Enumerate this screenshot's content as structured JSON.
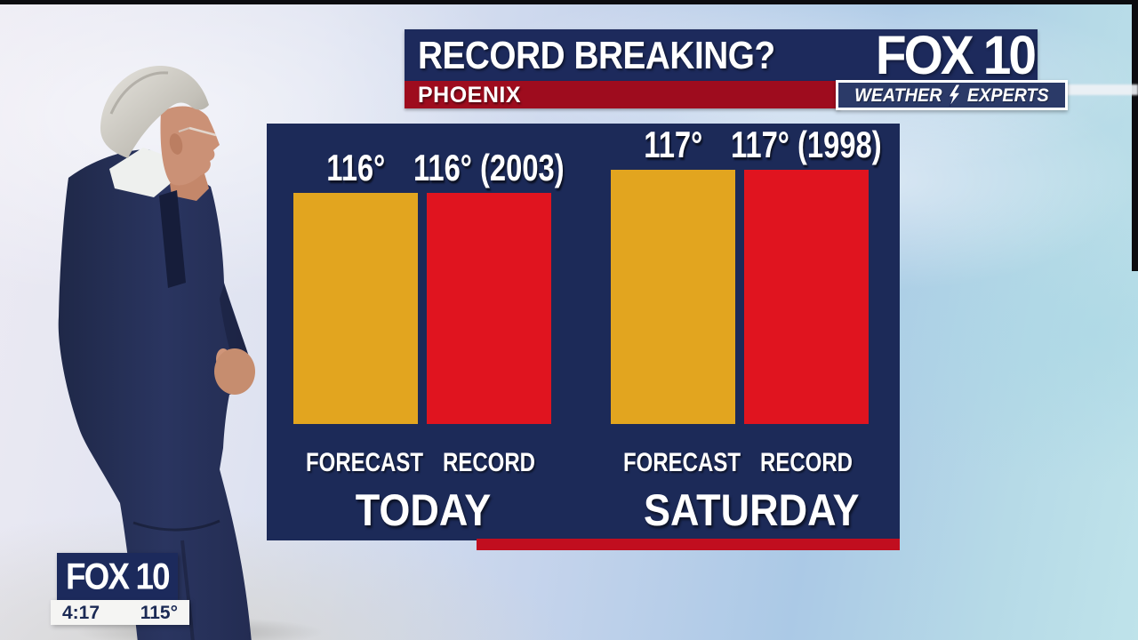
{
  "header": {
    "title": "RECORD BREAKING?",
    "location": "PHOENIX",
    "logo_text": "FOX 10",
    "weather_experts": {
      "left": "WEATHER",
      "right": "EXPERTS"
    }
  },
  "chart_data": {
    "type": "bar",
    "title": "RECORD BREAKING?",
    "location": "PHOENIX",
    "unit": "°",
    "value_range_shown": [
      106,
      117
    ],
    "grid": false,
    "legend": "none",
    "groups": [
      {
        "day": "TODAY",
        "bars": [
          {
            "category": "FORECAST",
            "value": 116,
            "label": "116°",
            "role": "forecast"
          },
          {
            "category": "RECORD",
            "value": 116,
            "label": "116° (2003)",
            "record_year": 2003,
            "role": "record"
          }
        ]
      },
      {
        "day": "SATURDAY",
        "bars": [
          {
            "category": "FORECAST",
            "value": 117,
            "label": "117°",
            "role": "forecast"
          },
          {
            "category": "RECORD",
            "value": 117,
            "label": "117° (1998)",
            "record_year": 1998,
            "role": "record"
          }
        ]
      }
    ],
    "colors": {
      "forecast": "#e2a51f",
      "record": "#e0141f",
      "panel": "#1c2a58"
    }
  },
  "colors": {
    "header_navy": "#1d2a5c",
    "location_red": "#9e0c1e",
    "accent_stripe": "#c10e1f",
    "badge_navy": "#1c2a5c"
  },
  "corner_badge": {
    "station": "FOX 10",
    "time": "4:17",
    "temperature": "115°"
  }
}
